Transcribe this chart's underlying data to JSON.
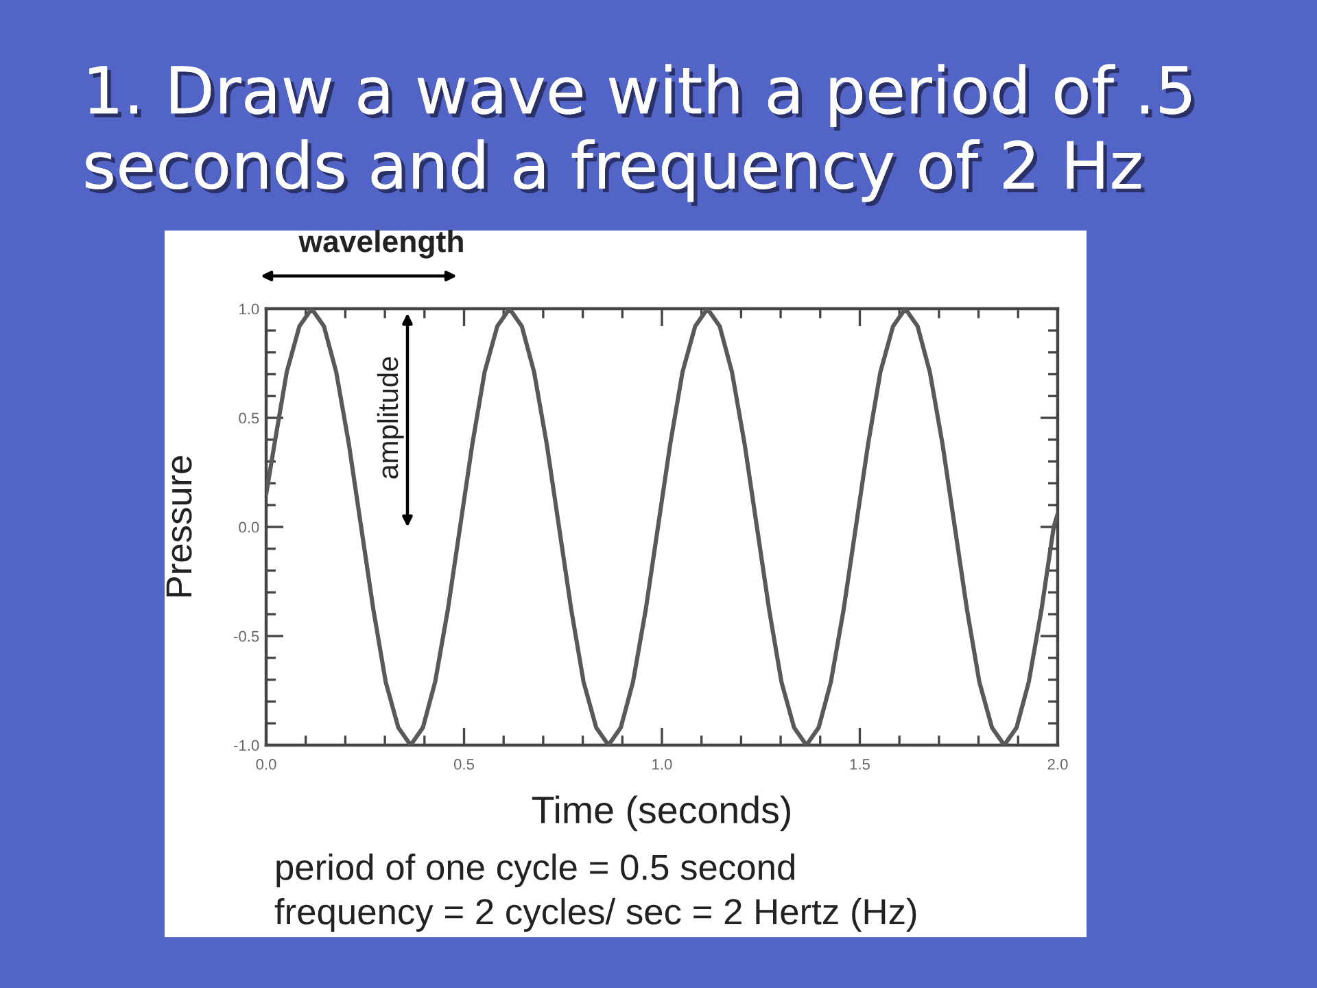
{
  "chart_data": {
    "type": "line",
    "title": "1. Draw a wave with a period of .5 seconds and a frequency of 2 Hz",
    "xlabel": "Time (seconds)",
    "ylabel": "Pressure",
    "annotations": [
      "wavelength",
      "amplitude",
      "period of one cycle = 0.5 second",
      "frequency = 2 cycles/ sec = 2 Hertz (Hz)"
    ],
    "x": [
      0,
      0.021,
      0.052,
      0.084,
      0.115,
      0.146,
      0.177,
      0.209,
      0.24,
      0.271,
      0.302,
      0.334,
      0.365,
      0.396,
      0.427,
      0.459,
      0.49,
      0.521,
      0.552,
      0.584,
      0.615,
      0.646,
      0.677,
      0.709,
      0.74,
      0.771,
      0.802,
      0.834,
      0.865,
      0.896,
      0.927,
      0.959,
      0.99,
      1.021,
      1.052,
      1.084,
      1.115,
      1.146,
      1.177,
      1.209,
      1.24,
      1.271,
      1.302,
      1.334,
      1.365,
      1.396,
      1.427,
      1.459,
      1.49,
      1.521,
      1.552,
      1.584,
      1.615,
      1.646,
      1.677,
      1.709,
      1.74,
      1.771,
      1.802,
      1.834,
      1.865,
      1.896,
      1.927,
      1.959,
      1.99,
      2.0
    ],
    "series": [
      {
        "color": "#595959",
        "values": [
          0.15,
          0.38,
          0.71,
          0.92,
          1,
          0.92,
          0.71,
          0.38,
          0,
          -0.38,
          -0.71,
          -0.92,
          -1,
          -0.92,
          -0.71,
          -0.38,
          0,
          0.38,
          0.71,
          0.92,
          1,
          0.92,
          0.71,
          0.38,
          0,
          -0.38,
          -0.71,
          -0.92,
          -1,
          -0.92,
          -0.71,
          -0.38,
          0,
          0.38,
          0.71,
          0.92,
          1,
          0.92,
          0.71,
          0.38,
          0,
          -0.38,
          -0.71,
          -0.92,
          -1,
          -0.92,
          -0.71,
          -0.38,
          0,
          0.38,
          0.71,
          0.92,
          1,
          0.92,
          0.71,
          0.38,
          0,
          -0.38,
          -0.71,
          -0.92,
          -1,
          -0.92,
          -0.71,
          -0.38,
          0,
          0.06
        ]
      }
    ],
    "xlim": [
      0,
      2
    ],
    "ylim": [
      -1,
      1
    ],
    "xticks": [
      {
        "value": 0,
        "label": "0.0"
      },
      {
        "value": 0.1,
        "label": null
      },
      {
        "value": 0.2,
        "label": null
      },
      {
        "value": 0.3,
        "label": null
      },
      {
        "value": 0.4,
        "label": null
      },
      {
        "value": 0.5,
        "label": "0.5"
      },
      {
        "value": 0.6,
        "label": null
      },
      {
        "value": 0.7,
        "label": null
      },
      {
        "value": 0.8,
        "label": null
      },
      {
        "value": 0.9,
        "label": null
      },
      {
        "value": 1,
        "label": "1.0"
      },
      {
        "value": 1.1,
        "label": null
      },
      {
        "value": 1.2,
        "label": null
      },
      {
        "value": 1.3,
        "label": null
      },
      {
        "value": 1.4,
        "label": null
      },
      {
        "value": 1.5,
        "label": "1.5"
      },
      {
        "value": 1.6,
        "label": null
      },
      {
        "value": 1.7,
        "label": null
      },
      {
        "value": 1.8,
        "label": null
      },
      {
        "value": 1.9,
        "label": null
      },
      {
        "value": 2,
        "label": "2.0"
      }
    ],
    "yticks": [
      {
        "value": -1,
        "label": "-1.0"
      },
      {
        "value": -0.9,
        "label": null
      },
      {
        "value": -0.8,
        "label": null
      },
      {
        "value": -0.7,
        "label": null
      },
      {
        "value": -0.6,
        "label": null
      },
      {
        "value": -0.5,
        "label": "-0.5"
      },
      {
        "value": -0.4,
        "label": null
      },
      {
        "value": -0.3,
        "label": null
      },
      {
        "value": -0.2,
        "label": null
      },
      {
        "value": -0.1,
        "label": null
      },
      {
        "value": 0,
        "label": "0.0"
      },
      {
        "value": 0.1,
        "label": null
      },
      {
        "value": 0.2,
        "label": null
      },
      {
        "value": 0.3,
        "label": null
      },
      {
        "value": 0.4,
        "label": null
      },
      {
        "value": 0.5,
        "label": "0.5"
      },
      {
        "value": 0.6,
        "label": null
      },
      {
        "value": 0.7,
        "label": null
      },
      {
        "value": 0.8,
        "label": null
      },
      {
        "value": 0.9,
        "label": null
      },
      {
        "value": 1,
        "label": "1.0"
      }
    ],
    "grid": false,
    "marker": "none",
    "line_style": "solid"
  }
}
